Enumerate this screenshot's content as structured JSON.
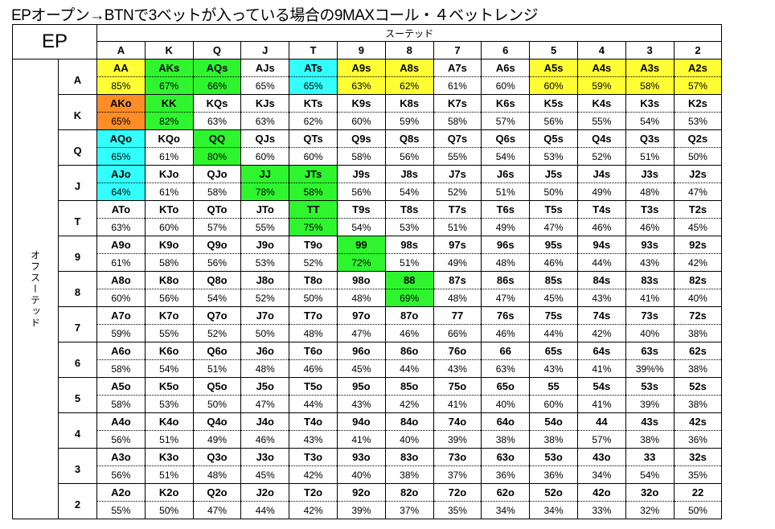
{
  "title": "EPオープン→BTNで3ベットが入っている場合の9MAXコール・４ベットレンジ",
  "corner_label": "EP",
  "suited_label": "スーテッド",
  "offsuit_label": "オフスーテッド",
  "colors": {
    "y": "#ffff33",
    "g": "#2ef52e",
    "c": "#33ffff",
    "o": "#ff8c26",
    "w": "#ffffff"
  },
  "columns": [
    "A",
    "K",
    "Q",
    "J",
    "T",
    "9",
    "8",
    "7",
    "6",
    "5",
    "4",
    "3",
    "2"
  ],
  "rows": [
    {
      "label": "A",
      "cells": [
        [
          "AA",
          "85%",
          "y"
        ],
        [
          "AKs",
          "67%",
          "g"
        ],
        [
          "AQs",
          "66%",
          "g"
        ],
        [
          "AJs",
          "65%",
          "w"
        ],
        [
          "ATs",
          "65%",
          "c"
        ],
        [
          "A9s",
          "63%",
          "y"
        ],
        [
          "A8s",
          "62%",
          "y"
        ],
        [
          "A7s",
          "61%",
          "w"
        ],
        [
          "A6s",
          "60%",
          "w"
        ],
        [
          "A5s",
          "60%",
          "y"
        ],
        [
          "A4s",
          "59%",
          "y"
        ],
        [
          "A3s",
          "58%",
          "y"
        ],
        [
          "A2s",
          "57%",
          "y"
        ]
      ]
    },
    {
      "label": "K",
      "cells": [
        [
          "AKo",
          "65%",
          "o"
        ],
        [
          "KK",
          "82%",
          "g"
        ],
        [
          "KQs",
          "63%",
          "w"
        ],
        [
          "KJs",
          "63%",
          "w"
        ],
        [
          "KTs",
          "62%",
          "w"
        ],
        [
          "K9s",
          "60%",
          "w"
        ],
        [
          "K8s",
          "59%",
          "w"
        ],
        [
          "K7s",
          "58%",
          "w"
        ],
        [
          "K6s",
          "57%",
          "w"
        ],
        [
          "K5s",
          "56%",
          "w"
        ],
        [
          "K4s",
          "55%",
          "w"
        ],
        [
          "K3s",
          "54%",
          "w"
        ],
        [
          "K2s",
          "53%",
          "w"
        ]
      ]
    },
    {
      "label": "Q",
      "cells": [
        [
          "AQo",
          "65%",
          "c"
        ],
        [
          "KQo",
          "61%",
          "w"
        ],
        [
          "QQ",
          "80%",
          "g"
        ],
        [
          "QJs",
          "60%",
          "w"
        ],
        [
          "QTs",
          "60%",
          "w"
        ],
        [
          "Q9s",
          "58%",
          "w"
        ],
        [
          "Q8s",
          "56%",
          "w"
        ],
        [
          "Q7s",
          "55%",
          "w"
        ],
        [
          "Q6s",
          "54%",
          "w"
        ],
        [
          "Q5s",
          "53%",
          "w"
        ],
        [
          "Q4s",
          "52%",
          "w"
        ],
        [
          "Q3s",
          "51%",
          "w"
        ],
        [
          "Q2s",
          "50%",
          "w"
        ]
      ]
    },
    {
      "label": "J",
      "cells": [
        [
          "AJo",
          "64%",
          "c"
        ],
        [
          "KJo",
          "61%",
          "w"
        ],
        [
          "QJo",
          "58%",
          "w"
        ],
        [
          "JJ",
          "78%",
          "g"
        ],
        [
          "JTs",
          "58%",
          "g"
        ],
        [
          "J9s",
          "56%",
          "w"
        ],
        [
          "J8s",
          "54%",
          "w"
        ],
        [
          "J7s",
          "52%",
          "w"
        ],
        [
          "J6s",
          "51%",
          "w"
        ],
        [
          "J5s",
          "50%",
          "w"
        ],
        [
          "J4s",
          "49%",
          "w"
        ],
        [
          "J3s",
          "48%",
          "w"
        ],
        [
          "J2s",
          "47%",
          "w"
        ]
      ]
    },
    {
      "label": "T",
      "cells": [
        [
          "ATo",
          "63%",
          "w"
        ],
        [
          "KTo",
          "60%",
          "w"
        ],
        [
          "QTo",
          "57%",
          "w"
        ],
        [
          "JTo",
          "55%",
          "w"
        ],
        [
          "TT",
          "75%",
          "g"
        ],
        [
          "T9s",
          "54%",
          "w"
        ],
        [
          "T8s",
          "53%",
          "w"
        ],
        [
          "T7s",
          "51%",
          "w"
        ],
        [
          "T6s",
          "49%",
          "w"
        ],
        [
          "T5s",
          "47%",
          "w"
        ],
        [
          "T4s",
          "46%",
          "w"
        ],
        [
          "T3s",
          "46%",
          "w"
        ],
        [
          "T2s",
          "45%",
          "w"
        ]
      ]
    },
    {
      "label": "9",
      "cells": [
        [
          "A9o",
          "61%",
          "w"
        ],
        [
          "K9o",
          "58%",
          "w"
        ],
        [
          "Q9o",
          "56%",
          "w"
        ],
        [
          "J9o",
          "53%",
          "w"
        ],
        [
          "T9o",
          "52%",
          "w"
        ],
        [
          "99",
          "72%",
          "g"
        ],
        [
          "98s",
          "51%",
          "w"
        ],
        [
          "97s",
          "49%",
          "w"
        ],
        [
          "96s",
          "48%",
          "w"
        ],
        [
          "95s",
          "46%",
          "w"
        ],
        [
          "94s",
          "44%",
          "w"
        ],
        [
          "93s",
          "43%",
          "w"
        ],
        [
          "92s",
          "42%",
          "w"
        ]
      ]
    },
    {
      "label": "8",
      "cells": [
        [
          "A8o",
          "60%",
          "w"
        ],
        [
          "K8o",
          "56%",
          "w"
        ],
        [
          "Q8o",
          "54%",
          "w"
        ],
        [
          "J8o",
          "52%",
          "w"
        ],
        [
          "T8o",
          "50%",
          "w"
        ],
        [
          "98o",
          "48%",
          "w"
        ],
        [
          "88",
          "69%",
          "g"
        ],
        [
          "87s",
          "48%",
          "w"
        ],
        [
          "86s",
          "47%",
          "w"
        ],
        [
          "85s",
          "45%",
          "w"
        ],
        [
          "84s",
          "43%",
          "w"
        ],
        [
          "83s",
          "41%",
          "w"
        ],
        [
          "82s",
          "40%",
          "w"
        ]
      ]
    },
    {
      "label": "7",
      "cells": [
        [
          "A7o",
          "59%",
          "w"
        ],
        [
          "K7o",
          "55%",
          "w"
        ],
        [
          "Q7o",
          "52%",
          "w"
        ],
        [
          "J7o",
          "50%",
          "w"
        ],
        [
          "T7o",
          "48%",
          "w"
        ],
        [
          "97o",
          "47%",
          "w"
        ],
        [
          "87o",
          "46%",
          "w"
        ],
        [
          "77",
          "66%",
          "w"
        ],
        [
          "76s",
          "46%",
          "w"
        ],
        [
          "75s",
          "44%",
          "w"
        ],
        [
          "74s",
          "42%",
          "w"
        ],
        [
          "73s",
          "40%",
          "w"
        ],
        [
          "72s",
          "38%",
          "w"
        ]
      ]
    },
    {
      "label": "6",
      "cells": [
        [
          "A6o",
          "58%",
          "w"
        ],
        [
          "K6o",
          "54%",
          "w"
        ],
        [
          "Q6o",
          "51%",
          "w"
        ],
        [
          "J6o",
          "48%",
          "w"
        ],
        [
          "T6o",
          "46%",
          "w"
        ],
        [
          "96o",
          "45%",
          "w"
        ],
        [
          "86o",
          "44%",
          "w"
        ],
        [
          "76o",
          "43%",
          "w"
        ],
        [
          "66",
          "63%",
          "w"
        ],
        [
          "65s",
          "43%",
          "w"
        ],
        [
          "64s",
          "41%",
          "w"
        ],
        [
          "63s",
          "39%%",
          "w"
        ],
        [
          "62s",
          "38%",
          "w"
        ]
      ]
    },
    {
      "label": "5",
      "cells": [
        [
          "A5o",
          "58%",
          "w"
        ],
        [
          "K5o",
          "53%",
          "w"
        ],
        [
          "Q5o",
          "50%",
          "w"
        ],
        [
          "J5o",
          "47%",
          "w"
        ],
        [
          "T5o",
          "44%",
          "w"
        ],
        [
          "95o",
          "43%",
          "w"
        ],
        [
          "85o",
          "42%",
          "w"
        ],
        [
          "75o",
          "41%",
          "w"
        ],
        [
          "65o",
          "40%",
          "w"
        ],
        [
          "55",
          "60%",
          "w"
        ],
        [
          "54s",
          "41%",
          "w"
        ],
        [
          "53s",
          "39%",
          "w"
        ],
        [
          "52s",
          "38%",
          "w"
        ]
      ]
    },
    {
      "label": "4",
      "cells": [
        [
          "A4o",
          "56%",
          "w"
        ],
        [
          "K4o",
          "51%",
          "w"
        ],
        [
          "Q4o",
          "49%",
          "w"
        ],
        [
          "J4o",
          "46%",
          "w"
        ],
        [
          "T4o",
          "43%",
          "w"
        ],
        [
          "94o",
          "41%",
          "w"
        ],
        [
          "84o",
          "40%",
          "w"
        ],
        [
          "74o",
          "39%",
          "w"
        ],
        [
          "64o",
          "38%",
          "w"
        ],
        [
          "54o",
          "38%",
          "w"
        ],
        [
          "44",
          "57%",
          "w"
        ],
        [
          "43s",
          "38%",
          "w"
        ],
        [
          "42s",
          "36%",
          "w"
        ]
      ]
    },
    {
      "label": "3",
      "cells": [
        [
          "A3o",
          "56%",
          "w"
        ],
        [
          "K3o",
          "51%",
          "w"
        ],
        [
          "Q3o",
          "48%",
          "w"
        ],
        [
          "J3o",
          "45%",
          "w"
        ],
        [
          "T3o",
          "42%",
          "w"
        ],
        [
          "93o",
          "40%",
          "w"
        ],
        [
          "83o",
          "38%",
          "w"
        ],
        [
          "73o",
          "37%",
          "w"
        ],
        [
          "63o",
          "36%",
          "w"
        ],
        [
          "53o",
          "36%",
          "w"
        ],
        [
          "43o",
          "34%",
          "w"
        ],
        [
          "33",
          "54%",
          "w"
        ],
        [
          "32s",
          "35%",
          "w"
        ]
      ]
    },
    {
      "label": "2",
      "cells": [
        [
          "A2o",
          "55%",
          "w"
        ],
        [
          "K2o",
          "50%",
          "w"
        ],
        [
          "Q2o",
          "47%",
          "w"
        ],
        [
          "J2o",
          "44%",
          "w"
        ],
        [
          "T2o",
          "42%",
          "w"
        ],
        [
          "92o",
          "39%",
          "w"
        ],
        [
          "82o",
          "37%",
          "w"
        ],
        [
          "72o",
          "35%",
          "w"
        ],
        [
          "62o",
          "34%",
          "w"
        ],
        [
          "52o",
          "34%",
          "w"
        ],
        [
          "42o",
          "33%",
          "w"
        ],
        [
          "32o",
          "32%",
          "w"
        ],
        [
          "22",
          "50%",
          "w"
        ]
      ]
    }
  ]
}
